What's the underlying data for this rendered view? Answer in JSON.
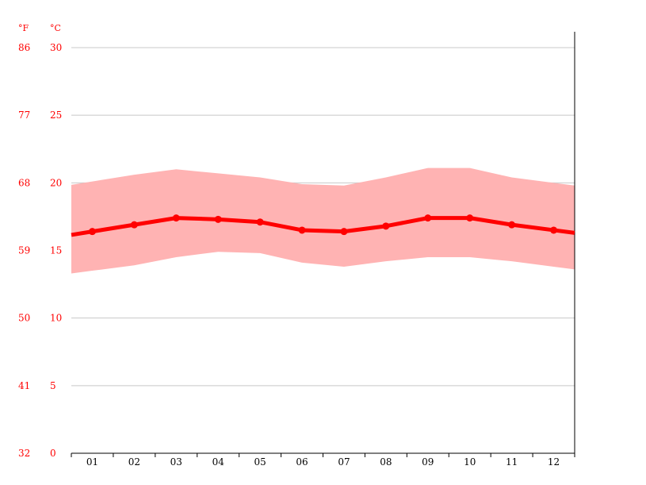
{
  "chart_data": {
    "type": "line",
    "title": "",
    "xlabel": "",
    "ylabel": "",
    "unit_labels": {
      "fahrenheit": "°F",
      "celsius": "°C"
    },
    "categories": [
      "01",
      "02",
      "03",
      "04",
      "05",
      "06",
      "07",
      "08",
      "09",
      "10",
      "11",
      "12"
    ],
    "y_ticks_celsius": [
      "30",
      "25",
      "20",
      "15",
      "10",
      "5",
      "0"
    ],
    "y_ticks_fahrenheit": [
      "86",
      "77",
      "68",
      "59",
      "50",
      "41",
      "32"
    ],
    "ylim": [
      0,
      30
    ],
    "grid": true,
    "series": [
      {
        "role": "average",
        "values": [
          16.4,
          16.9,
          17.4,
          17.3,
          17.1,
          16.5,
          16.4,
          16.8,
          17.4,
          17.4,
          16.9,
          16.5
        ]
      },
      {
        "role": "max",
        "values": [
          20.1,
          20.6,
          21.0,
          20.7,
          20.4,
          19.9,
          19.8,
          20.4,
          21.1,
          21.1,
          20.4,
          20.0
        ]
      },
      {
        "role": "min",
        "values": [
          13.5,
          13.9,
          14.5,
          14.9,
          14.8,
          14.1,
          13.8,
          14.2,
          14.5,
          14.5,
          14.2,
          13.8
        ]
      }
    ],
    "colors": {
      "line": "#ff0000",
      "band": "#ffb3b3",
      "grid": "#c8c8c8",
      "axis": "#000000"
    }
  }
}
